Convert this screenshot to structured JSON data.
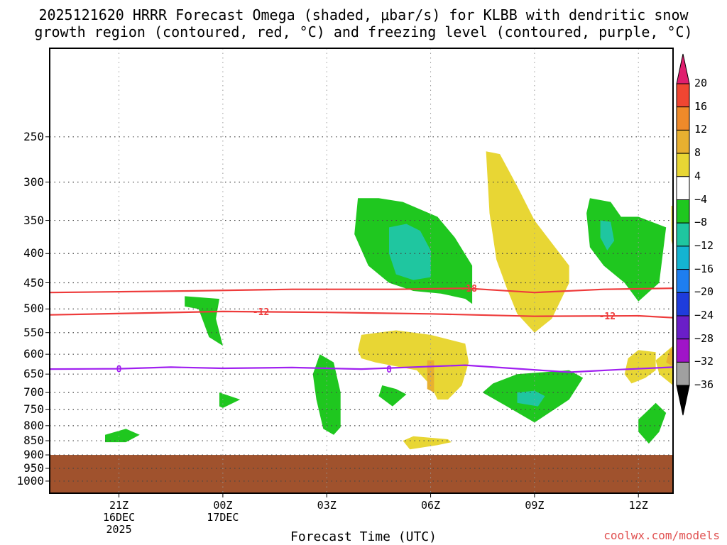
{
  "title": {
    "line1": "2025121620 HRRR Forecast Omega (shaded, μbar/s) for KLBB with dendritic snow",
    "line2": "growth region (contoured, red, °C) and freezing level (contoured, purple, °C)"
  },
  "xlabel": "Forecast Time (UTC)",
  "credit": "coolwx.com/models",
  "colors": {
    "terrain": "#a0522d",
    "dgz_line": "#ee3b3b",
    "freezing_line": "#a020f0",
    "positive": "#e8d634",
    "negative": "#1fc71f",
    "strong_negative": "#1fc6a0"
  },
  "chart_data": {
    "type": "cross-section",
    "x_unit": "forecast hour from 2025-12-16 20Z",
    "x_range": [
      -1,
      17
    ],
    "y_unit": "pressure (hPa)",
    "y_range": [
      1050,
      175
    ],
    "x_ticks": [
      {
        "hour": 1,
        "lines": [
          "21Z",
          "16DEC",
          "2025"
        ]
      },
      {
        "hour": 4,
        "lines": [
          "00Z",
          "17DEC",
          ""
        ]
      },
      {
        "hour": 7,
        "lines": [
          "03Z",
          "",
          ""
        ]
      },
      {
        "hour": 10,
        "lines": [
          "06Z",
          "",
          ""
        ]
      },
      {
        "hour": 13,
        "lines": [
          "09Z",
          "",
          ""
        ]
      },
      {
        "hour": 16,
        "lines": [
          "12Z",
          "",
          ""
        ]
      }
    ],
    "y_ticks": [
      250,
      300,
      350,
      400,
      450,
      500,
      550,
      600,
      650,
      700,
      750,
      800,
      850,
      900,
      950,
      1000
    ],
    "surface_pressure": 900,
    "colorbar": {
      "labels": [
        "20",
        "16",
        "12",
        "8",
        "4",
        "−4",
        "−8",
        "−12",
        "−16",
        "−20",
        "−24",
        "−28",
        "−32",
        "−36"
      ],
      "colors": [
        "#e01e6e",
        "#f04632",
        "#ef8a2a",
        "#e8b030",
        "#e8d634",
        "#ffffff",
        "#1fc71f",
        "#1fc6a0",
        "#14b4d2",
        "#1e7ef0",
        "#1e3cdc",
        "#6a1ec8",
        "#a014c8",
        "#a0a0a0",
        "#000000"
      ]
    },
    "contours": [
      {
        "name": "dgz-minus-18",
        "label": "-18",
        "points": [
          [
            -1,
            468
          ],
          [
            3,
            465
          ],
          [
            6,
            462
          ],
          [
            9,
            462
          ],
          [
            11,
            460
          ],
          [
            13,
            468
          ],
          [
            15,
            462
          ],
          [
            17,
            460
          ]
        ]
      },
      {
        "name": "dgz-minus-12",
        "label": "-12",
        "points": [
          [
            -1,
            512
          ],
          [
            2,
            508
          ],
          [
            4,
            505
          ],
          [
            7,
            507
          ],
          [
            10,
            510
          ],
          [
            13,
            515
          ],
          [
            16,
            514
          ],
          [
            17,
            518
          ]
        ]
      },
      {
        "name": "freezing-level-0",
        "label": "0",
        "points": [
          [
            -1,
            637
          ],
          [
            1,
            636
          ],
          [
            2.5,
            632
          ],
          [
            4,
            635
          ],
          [
            6,
            633
          ],
          [
            8,
            637
          ],
          [
            11,
            627
          ],
          [
            14,
            645
          ],
          [
            15.5,
            638
          ],
          [
            17,
            632
          ]
        ]
      }
    ],
    "contour_labels": [
      {
        "contour": "dgz-minus-18",
        "text": "-18",
        "hour": 11.1,
        "p": 460
      },
      {
        "contour": "dgz-minus-12",
        "text": "-12",
        "hour": 5.1,
        "p": 505
      },
      {
        "contour": "dgz-minus-12",
        "text": "-12",
        "hour": 15.1,
        "p": 514
      },
      {
        "contour": "freezing-level-0",
        "text": "0",
        "hour": 1.0,
        "p": 636
      },
      {
        "contour": "freezing-level-0",
        "text": "0",
        "hour": 8.8,
        "p": 637
      }
    ],
    "omega_regions": [
      {
        "name": "neg-upper-mid",
        "level": "-4",
        "points": [
          [
            7.9,
            320
          ],
          [
            8.5,
            320
          ],
          [
            9.2,
            325
          ],
          [
            10.2,
            345
          ],
          [
            10.7,
            375
          ],
          [
            11.2,
            420
          ],
          [
            11.2,
            490
          ],
          [
            11,
            480
          ],
          [
            10.3,
            470
          ],
          [
            9.5,
            465
          ],
          [
            8.8,
            450
          ],
          [
            8.2,
            420
          ],
          [
            7.8,
            370
          ]
        ]
      },
      {
        "name": "neg-upper-mid-core",
        "level": "-8",
        "points": [
          [
            8.8,
            360
          ],
          [
            9.3,
            355
          ],
          [
            9.7,
            365
          ],
          [
            10,
            395
          ],
          [
            10,
            440
          ],
          [
            9.5,
            445
          ],
          [
            9,
            435
          ],
          [
            8.8,
            400
          ]
        ]
      },
      {
        "name": "pos-upper-mid",
        "level": "4",
        "points": [
          [
            11.6,
            265
          ],
          [
            12,
            268
          ],
          [
            12.5,
            305
          ],
          [
            13,
            350
          ],
          [
            14,
            420
          ],
          [
            14,
            450
          ],
          [
            13.5,
            520
          ],
          [
            13,
            550
          ],
          [
            12.5,
            510
          ],
          [
            12.2,
            460
          ],
          [
            11.9,
            410
          ],
          [
            11.7,
            340
          ]
        ]
      },
      {
        "name": "neg-upper-right",
        "level": "-4",
        "points": [
          [
            14.6,
            320
          ],
          [
            15.2,
            325
          ],
          [
            15.5,
            345
          ],
          [
            16,
            345
          ],
          [
            16.8,
            360
          ],
          [
            16.6,
            450
          ],
          [
            16,
            485
          ],
          [
            15.6,
            450
          ],
          [
            15,
            420
          ],
          [
            14.6,
            390
          ],
          [
            14.5,
            340
          ]
        ]
      },
      {
        "name": "neg-upper-right-core",
        "level": "-8",
        "points": [
          [
            14.9,
            350
          ],
          [
            15.2,
            352
          ],
          [
            15.3,
            380
          ],
          [
            15.1,
            395
          ],
          [
            14.9,
            375
          ]
        ]
      },
      {
        "name": "pos-edge-upper",
        "level": "4",
        "points": [
          [
            16.95,
            330
          ],
          [
            17,
            330
          ],
          [
            17,
            390
          ],
          [
            16.95,
            380
          ]
        ]
      },
      {
        "name": "neg-mid-left",
        "level": "-4",
        "points": [
          [
            2.9,
            475
          ],
          [
            3.9,
            480
          ],
          [
            3.8,
            520
          ],
          [
            4,
            580
          ],
          [
            3.6,
            560
          ],
          [
            3.3,
            500
          ],
          [
            2.9,
            495
          ]
        ]
      },
      {
        "name": "neg-small-left",
        "level": "-4",
        "points": [
          [
            3.9,
            700
          ],
          [
            4.5,
            720
          ],
          [
            4,
            745
          ],
          [
            3.9,
            740
          ]
        ]
      },
      {
        "name": "neg-low-left",
        "level": "-4",
        "points": [
          [
            0.6,
            830
          ],
          [
            1.2,
            810
          ],
          [
            1.6,
            830
          ],
          [
            1.2,
            855
          ],
          [
            0.6,
            855
          ]
        ]
      },
      {
        "name": "neg-low-03z",
        "level": "-4",
        "points": [
          [
            6.8,
            600
          ],
          [
            7.2,
            620
          ],
          [
            7.4,
            700
          ],
          [
            7.4,
            805
          ],
          [
            7.2,
            830
          ],
          [
            6.9,
            810
          ],
          [
            6.7,
            720
          ],
          [
            6.6,
            650
          ]
        ]
      },
      {
        "name": "pos-mid",
        "level": "4",
        "points": [
          [
            8,
            555
          ],
          [
            9,
            545
          ],
          [
            10,
            555
          ],
          [
            11,
            575
          ],
          [
            11.1,
            620
          ],
          [
            10.9,
            680
          ],
          [
            10.5,
            720
          ],
          [
            10.2,
            720
          ],
          [
            10,
            680
          ],
          [
            9.6,
            640
          ],
          [
            9,
            630
          ],
          [
            8.4,
            620
          ],
          [
            8,
            610
          ],
          [
            7.9,
            590
          ]
        ]
      },
      {
        "name": "pos-mid-core",
        "level": "8",
        "points": [
          [
            9.9,
            615
          ],
          [
            10.1,
            615
          ],
          [
            10.1,
            700
          ],
          [
            9.9,
            690
          ]
        ]
      },
      {
        "name": "neg-mid-small",
        "level": "-4",
        "points": [
          [
            8.6,
            680
          ],
          [
            9,
            690
          ],
          [
            9.3,
            705
          ],
          [
            8.9,
            740
          ],
          [
            8.5,
            710
          ]
        ]
      },
      {
        "name": "neg-low-09z",
        "level": "-4",
        "points": [
          [
            11.8,
            675
          ],
          [
            12.5,
            650
          ],
          [
            14,
            640
          ],
          [
            14.4,
            660
          ],
          [
            14,
            720
          ],
          [
            13,
            790
          ],
          [
            12.2,
            740
          ],
          [
            11.5,
            700
          ]
        ]
      },
      {
        "name": "neg-low-09z-core",
        "level": "-8",
        "points": [
          [
            12.5,
            700
          ],
          [
            13,
            695
          ],
          [
            13.3,
            710
          ],
          [
            13.1,
            740
          ],
          [
            12.5,
            730
          ]
        ]
      },
      {
        "name": "pos-right-mid",
        "level": "4",
        "points": [
          [
            15.7,
            610
          ],
          [
            16,
            590
          ],
          [
            16.5,
            595
          ],
          [
            16.5,
            640
          ],
          [
            16.2,
            660
          ],
          [
            15.8,
            675
          ],
          [
            15.6,
            650
          ]
        ]
      },
      {
        "name": "pos-right-edge",
        "level": "4",
        "points": [
          [
            16.5,
            615
          ],
          [
            17,
            580
          ],
          [
            17,
            680
          ],
          [
            16.6,
            650
          ]
        ]
      },
      {
        "name": "pos-right-edge-core",
        "level": "8",
        "points": [
          [
            16.9,
            590
          ],
          [
            17,
            585
          ],
          [
            17,
            630
          ],
          [
            16.8,
            620
          ]
        ]
      },
      {
        "name": "neg-low-right",
        "level": "-4",
        "points": [
          [
            16.2,
            760
          ],
          [
            16.5,
            730
          ],
          [
            16.8,
            760
          ],
          [
            16.6,
            820
          ],
          [
            16.3,
            860
          ],
          [
            16,
            820
          ],
          [
            16,
            780
          ]
        ]
      },
      {
        "name": "pos-low-06z",
        "level": "4",
        "points": [
          [
            9.2,
            850
          ],
          [
            9.5,
            835
          ],
          [
            10,
            840
          ],
          [
            10.5,
            845
          ],
          [
            10.6,
            855
          ],
          [
            10.2,
            865
          ],
          [
            9.4,
            880
          ]
        ]
      }
    ]
  }
}
